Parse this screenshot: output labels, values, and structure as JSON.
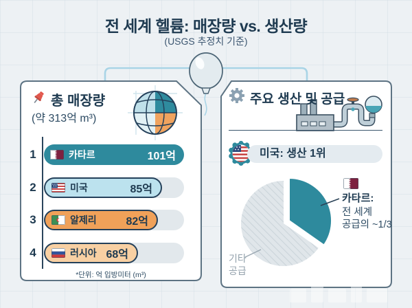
{
  "header": {
    "title": "전 세계 헬륨: 매장량 vs. 생산량",
    "subtitle": "(USGS 추정치 기준)"
  },
  "colors": {
    "page-bg": "#EDF1F4",
    "navy": "#1E3A50",
    "teal": "#2E8A9D",
    "light-blue": "#BCE2EE",
    "orange": "#F0A159",
    "peach": "#F8D0A3",
    "track": "#E2E8EC",
    "panel-border": "#5D7383",
    "connector": "#A9D4E6",
    "grey-slice": "#E0E6EA",
    "maroon": "#7E2140",
    "muted": "#93A1AC"
  },
  "left_panel": {
    "heading": "총 매장량",
    "subheading": "(약 313억 m³)",
    "footnote": "*단위: 억 입방미터 (m³)",
    "rows": [
      {
        "rank": "1",
        "country": "카타르",
        "value": 101,
        "value_label": "101억"
      },
      {
        "rank": "2",
        "country": "미국",
        "value": 85,
        "value_label": "85억"
      },
      {
        "rank": "3",
        "country": "알제리",
        "value": 82,
        "value_label": "82억"
      },
      {
        "rank": "4",
        "country": "러시아",
        "value": 68,
        "value_label": "68억"
      }
    ]
  },
  "right_panel": {
    "heading": "주요 생산 및 공급",
    "badge_label": "미국: 생산 1위",
    "pie_labels": {
      "qatar_title": "카타르:",
      "qatar_line2": "전 세계",
      "qatar_line3": "공급의 ~1/3",
      "other_line1": "기타",
      "other_line2": "공급"
    }
  },
  "chart_data": [
    {
      "type": "bar",
      "title": "총 매장량 (약 313억 m³)",
      "categories": [
        "카타르",
        "미국",
        "알제리",
        "러시아"
      ],
      "values": [
        101,
        85,
        82,
        68
      ],
      "unit": "억 m³",
      "note": "*단위: 억 입방미터 (m³)",
      "orientation": "horizontal",
      "xlim": [
        0,
        101
      ]
    },
    {
      "type": "pie",
      "title": "주요 생산 및 공급",
      "slices": [
        {
          "label": "카타르: 전 세계 공급의 ~1/3",
          "value": 33.3,
          "color": "#2E8A9D",
          "exploded": true
        },
        {
          "label": "기타 공급",
          "value": 66.7,
          "color": "#E0E6EA"
        }
      ],
      "annotation": "미국: 생산 1위"
    }
  ]
}
